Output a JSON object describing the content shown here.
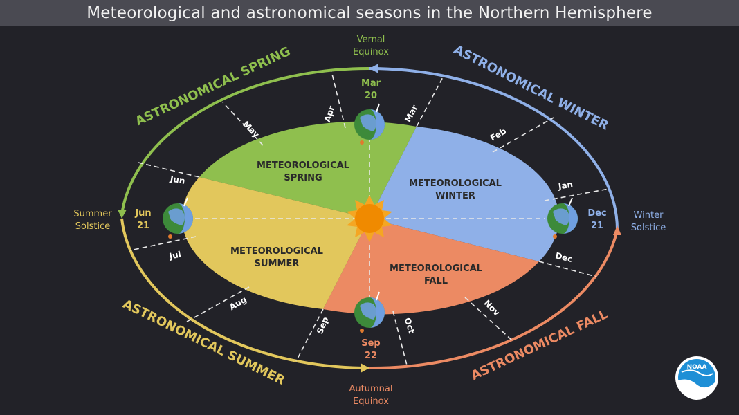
{
  "title": "Meteorological and astronomical seasons in the Northern Hemisphere",
  "meteorological": {
    "spring": [
      "METEOROLOGICAL",
      "SPRING"
    ],
    "winter": [
      "METEOROLOGICAL",
      "WINTER"
    ],
    "summer": [
      "METEOROLOGICAL",
      "SUMMER"
    ],
    "fall": [
      "METEOROLOGICAL",
      "FALL"
    ]
  },
  "astronomical": {
    "spring": "ASTRONOMICAL SPRING",
    "winter": "ASTRONOMICAL WINTER",
    "summer": "ASTRONOMICAL SUMMER",
    "fall": "ASTRONOMICAL FALL"
  },
  "events": {
    "vernal": [
      "Vernal",
      "Equinox"
    ],
    "summer_solstice": [
      "Summer",
      "Solstice"
    ],
    "winter_solstice": [
      "Winter",
      "Solstice"
    ],
    "autumnal": [
      "Autumnal",
      "Equinox"
    ]
  },
  "dates": {
    "mar20": [
      "Mar",
      "20"
    ],
    "jun21": [
      "Jun",
      "21"
    ],
    "dec21": [
      "Dec",
      "21"
    ],
    "sep22": [
      "Sep",
      "22"
    ]
  },
  "months": {
    "jan": "Jan",
    "feb": "Feb",
    "mar": "Mar",
    "apr": "Apr",
    "may": "May",
    "jun": "Jun",
    "jul": "Jul",
    "aug": "Aug",
    "sep": "Sep",
    "oct": "Oct",
    "nov": "Nov",
    "dec": "Dec"
  },
  "logo": "NOAA",
  "colors": {
    "background": "#222228",
    "title_bar": "#4a4a52",
    "spring": "#8fbf4e",
    "winter": "#8fb0e8",
    "summer": "#e2c75c",
    "fall": "#ec8a63",
    "sun": "#f08a00",
    "noaa": "#1e8fd6"
  }
}
